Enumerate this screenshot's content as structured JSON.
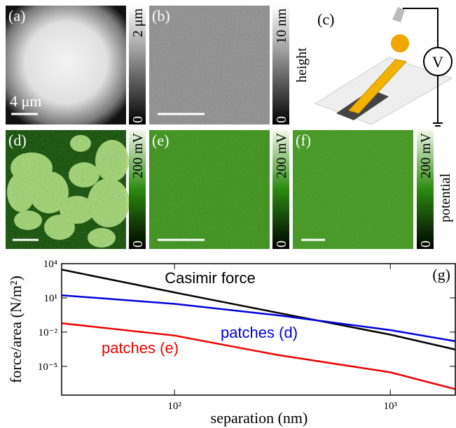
{
  "panels": [
    {
      "label": "(a)",
      "scale_label": "4 μm"
    },
    {
      "label": "(b)"
    },
    {
      "label": "(c)",
      "meter": "V"
    },
    {
      "label": "(d)"
    },
    {
      "label": "(e)"
    },
    {
      "label": "(f)"
    }
  ],
  "colorbars": [
    {
      "max": "2 μm",
      "min": "0"
    },
    {
      "max": "10 nm",
      "min": "0"
    },
    {
      "max": "200 mV",
      "min": "0"
    },
    {
      "max": "200 mV",
      "min": "0"
    },
    {
      "max": "200 mV",
      "min": "0"
    }
  ],
  "side_labels": {
    "top": "height",
    "middle": "potential"
  },
  "chart_data": {
    "type": "line",
    "panel_label": "(g)",
    "x_label": "separation (nm)",
    "y_label": "force/area (N/m²)",
    "x": [
      30,
      100,
      300,
      1000,
      2000
    ],
    "series": [
      {
        "name": "Casimir force",
        "color": "#000000",
        "values": [
          3000,
          30,
          0.5,
          0.006,
          0.0003
        ]
      },
      {
        "name": "patches (d)",
        "color": "#0000dd",
        "values": [
          17,
          3,
          0.3,
          0.015,
          0.0016
        ]
      },
      {
        "name": "patches (e)",
        "color": "#ee0000",
        "values": [
          0.06,
          0.005,
          0.0001,
          3e-06,
          1e-07
        ]
      }
    ],
    "log_x": true,
    "log_y": true,
    "xlim": [
      30,
      2000
    ],
    "ylim": [
      3e-08,
      10000
    ],
    "xticks": [
      {
        "value": 100,
        "label": "10²"
      },
      {
        "value": 1000,
        "label": "10³"
      }
    ],
    "yticks": [
      {
        "value": 10000,
        "label": "10⁴"
      },
      {
        "value": 10,
        "label": "10¹"
      },
      {
        "value": 0.01,
        "label": "10⁻²"
      },
      {
        "value": 1e-05,
        "label": "10⁻⁵"
      }
    ]
  }
}
